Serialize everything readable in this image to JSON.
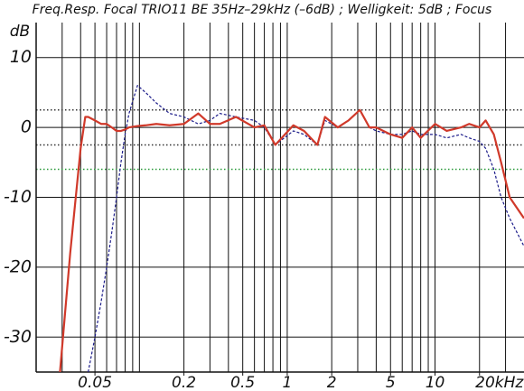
{
  "chart_data": {
    "type": "line",
    "title": "Freq.Resp. Focal TRIO11 BE 35Hz–29kHz (–6dB) ; Welligkeit: 5dB ; Focus",
    "y_label": "dB",
    "log_x": true,
    "xlim": [
      0.02,
      40
    ],
    "ylim": [
      -35,
      15
    ],
    "xticks": [
      0.05,
      0.2,
      0.5,
      1,
      2,
      5,
      10,
      {
        "value": 20,
        "label": "20kHz"
      }
    ],
    "x_minor_grid": [
      0.02,
      0.03,
      0.04,
      0.05,
      0.06,
      0.07,
      0.08,
      0.09,
      0.1,
      0.2,
      0.3,
      0.4,
      0.5,
      0.6,
      0.7,
      0.8,
      0.9,
      1,
      2,
      3,
      4,
      5,
      6,
      7,
      8,
      9,
      10,
      20,
      30
    ],
    "yticks": [
      -30,
      -20,
      -10,
      0,
      10
    ],
    "grid": true,
    "reference_lines": [
      {
        "value": 2.5,
        "color": "#333333"
      },
      {
        "value": -2.5,
        "color": "#333333"
      },
      {
        "value": -6,
        "color": "#2a9a3a"
      }
    ],
    "x": [
      0.029,
      0.034,
      0.04,
      0.043,
      0.045,
      0.05,
      0.055,
      0.06,
      0.065,
      0.07,
      0.075,
      0.08,
      0.085,
      0.097,
      0.11,
      0.13,
      0.16,
      0.2,
      0.25,
      0.3,
      0.35,
      0.45,
      0.6,
      0.7,
      0.83,
      1.1,
      1.3,
      1.6,
      1.8,
      2.2,
      2.6,
      3.1,
      3.6,
      4,
      5,
      6,
      7,
      8,
      10,
      12,
      15,
      17,
      20,
      22,
      25,
      28,
      32,
      40
    ],
    "series": [
      {
        "color": "#1c1c8a",
        "dashed": true,
        "values": [
          null,
          null,
          null,
          null,
          -35,
          -30,
          -25,
          -20,
          -15,
          -10,
          -5,
          -1,
          2,
          6,
          5,
          3.5,
          2,
          1.5,
          0.5,
          1,
          2,
          1.5,
          1,
          0,
          -2.5,
          -0.5,
          -1,
          -2.5,
          1,
          0,
          1,
          2.5,
          0,
          -0.5,
          -1,
          -1,
          -0.5,
          -1,
          -1,
          -1.5,
          -1,
          -1.5,
          -2,
          -3,
          -6,
          -10,
          -13,
          -17
        ]
      },
      {
        "color": "#d0392a",
        "dashed": false,
        "values": [
          -35,
          -18,
          -3,
          1.5,
          1.5,
          1,
          0.5,
          0.5,
          0,
          -0.5,
          -0.5,
          -0.3,
          0,
          0.2,
          0.3,
          0.5,
          0.3,
          0.5,
          2,
          0.5,
          0.5,
          1.5,
          0,
          0.3,
          -2.5,
          0.3,
          -0.5,
          -2.5,
          1.5,
          0,
          1,
          2.5,
          0,
          0,
          -1,
          -1.5,
          0,
          -1.5,
          0.5,
          -0.5,
          0,
          0.5,
          0,
          1,
          -1,
          -5,
          -10,
          -13
        ]
      }
    ]
  }
}
